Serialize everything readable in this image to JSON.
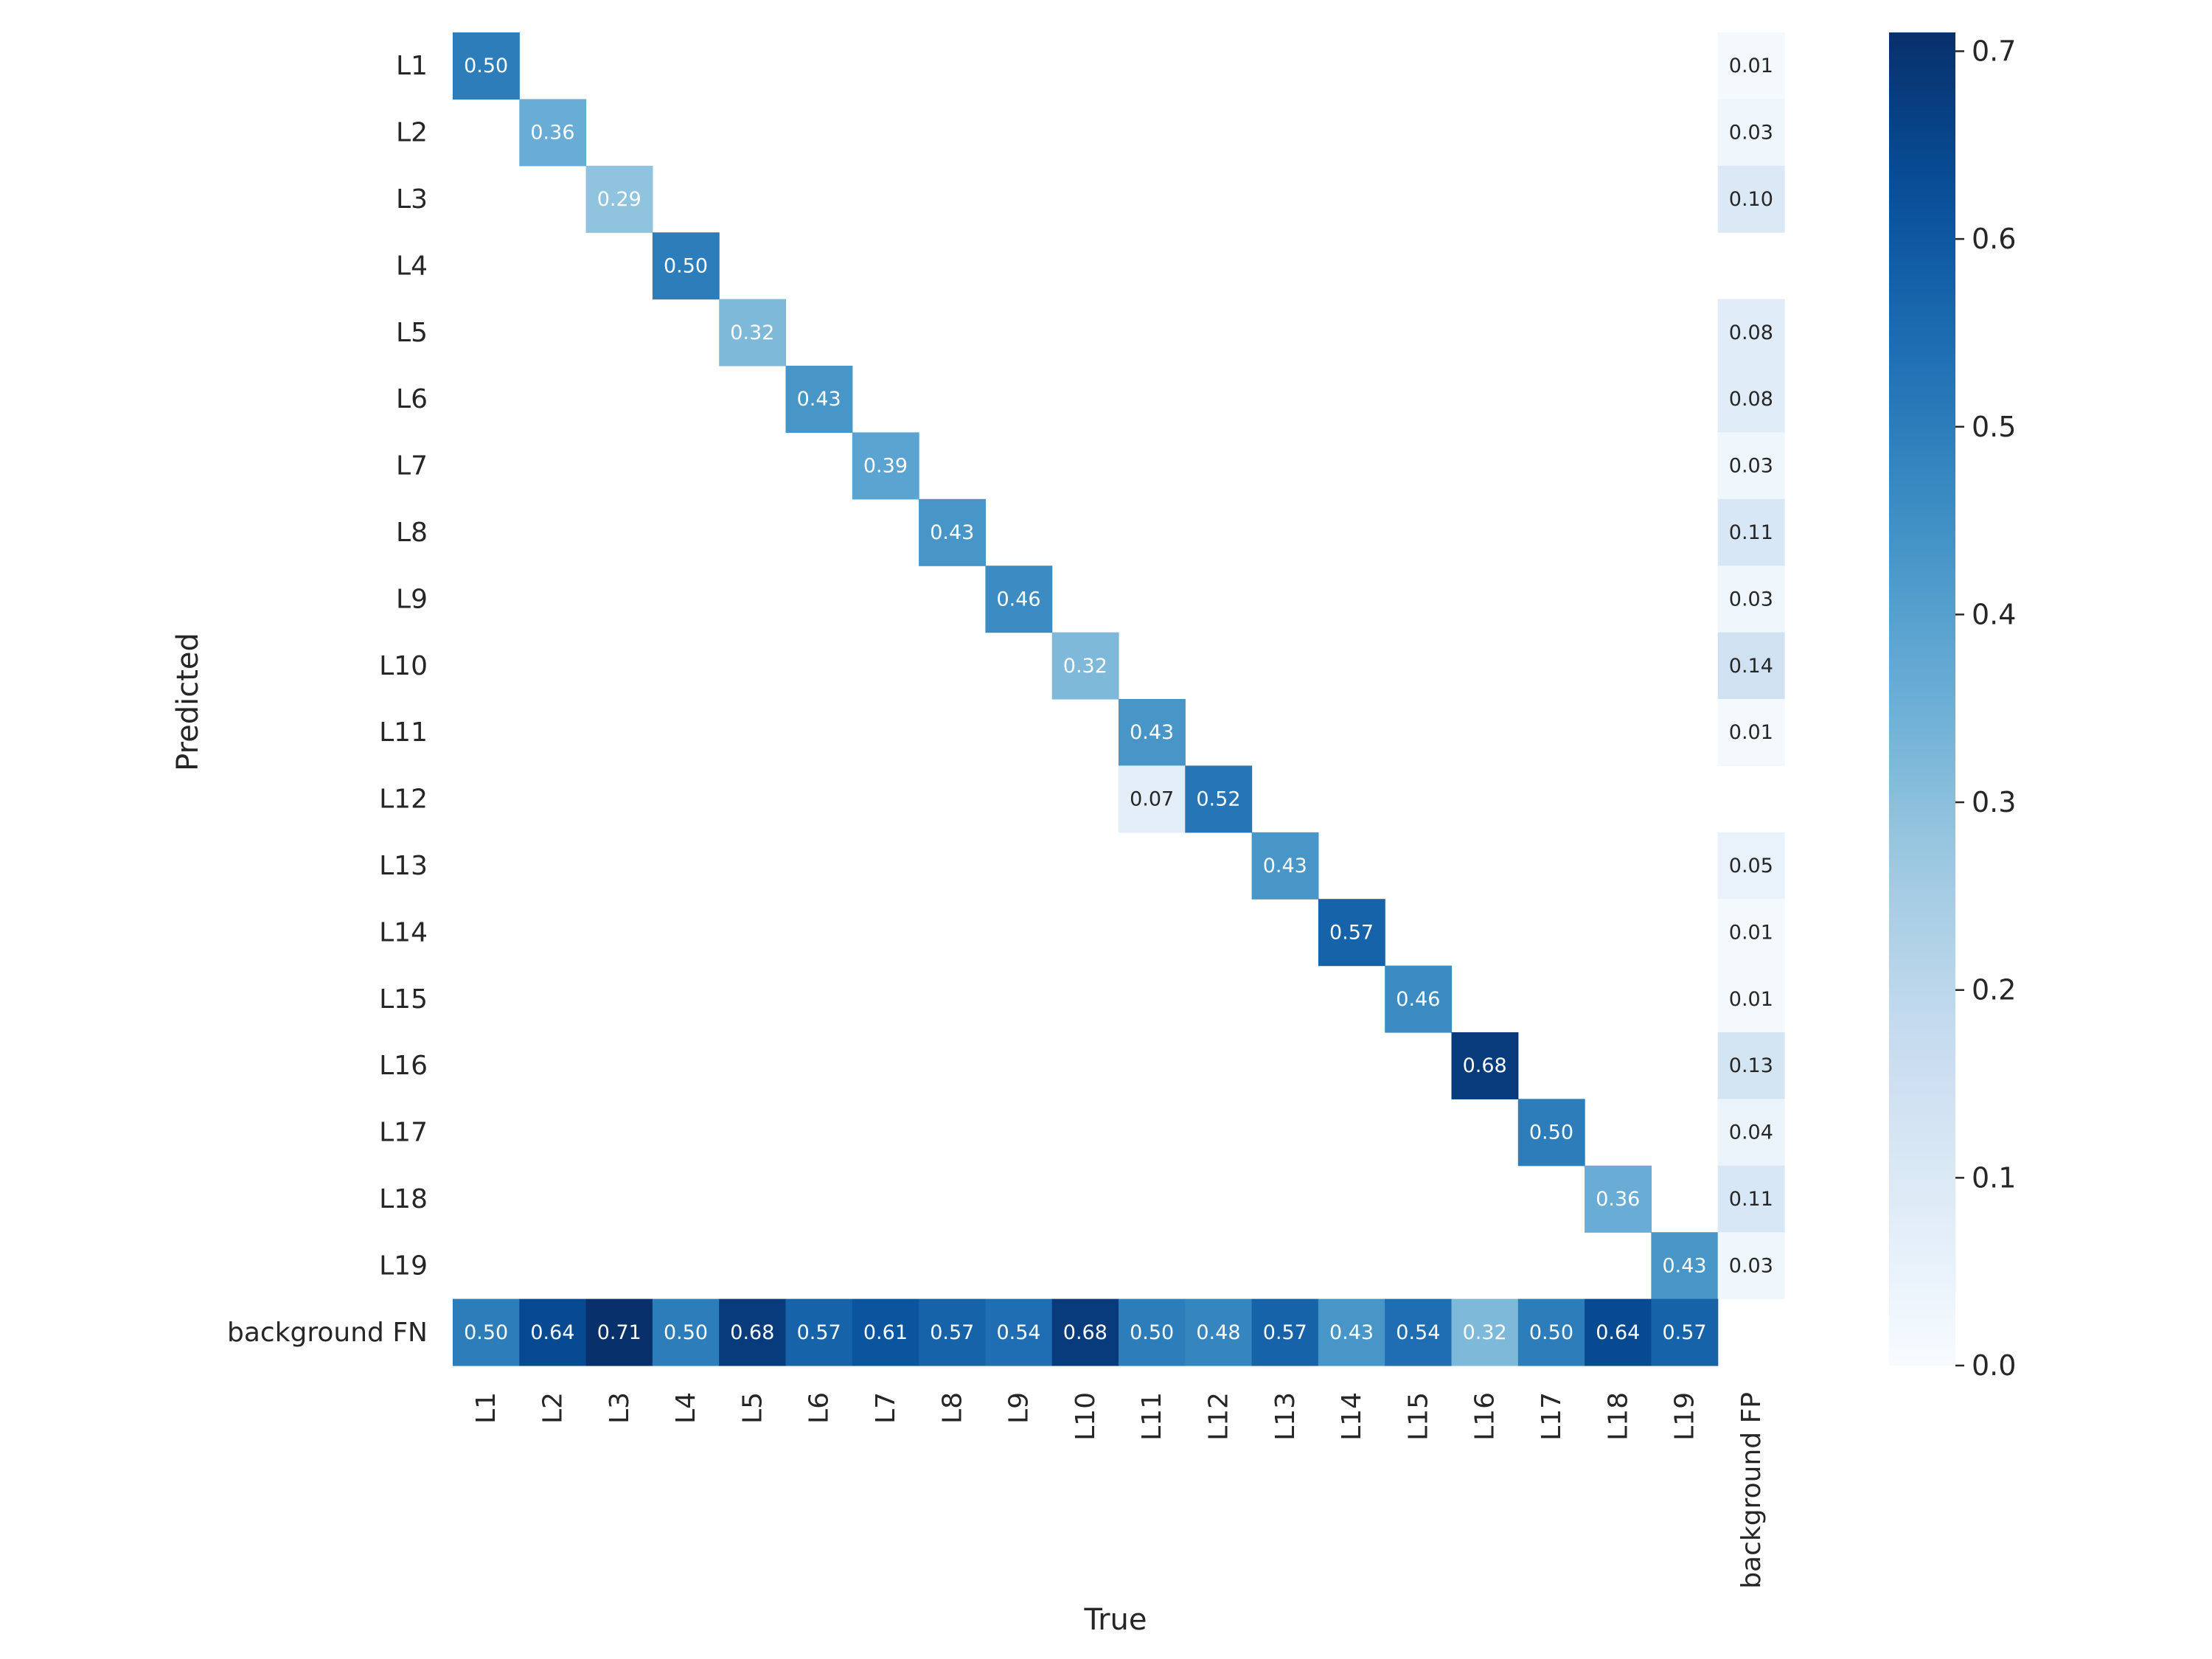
{
  "chart_data": {
    "type": "heatmap",
    "title": "",
    "xlabel": "True",
    "ylabel": "Predicted",
    "x_categories": [
      "L1",
      "L2",
      "L3",
      "L4",
      "L5",
      "L6",
      "L7",
      "L8",
      "L9",
      "L10",
      "L11",
      "L12",
      "L13",
      "L14",
      "L15",
      "L16",
      "L17",
      "L18",
      "L19",
      "background FP"
    ],
    "y_categories": [
      "L1",
      "L2",
      "L3",
      "L4",
      "L5",
      "L6",
      "L7",
      "L8",
      "L9",
      "L10",
      "L11",
      "L12",
      "L13",
      "L14",
      "L15",
      "L16",
      "L17",
      "L18",
      "L19",
      "background FN"
    ],
    "cells": [
      {
        "row": 0,
        "col": 0,
        "value": 0.5,
        "label": "0.50"
      },
      {
        "row": 0,
        "col": 19,
        "value": 0.01,
        "label": "0.01"
      },
      {
        "row": 1,
        "col": 1,
        "value": 0.36,
        "label": "0.36"
      },
      {
        "row": 1,
        "col": 19,
        "value": 0.03,
        "label": "0.03"
      },
      {
        "row": 2,
        "col": 2,
        "value": 0.29,
        "label": "0.29"
      },
      {
        "row": 2,
        "col": 19,
        "value": 0.1,
        "label": "0.10"
      },
      {
        "row": 3,
        "col": 3,
        "value": 0.5,
        "label": "0.50"
      },
      {
        "row": 4,
        "col": 4,
        "value": 0.32,
        "label": "0.32"
      },
      {
        "row": 4,
        "col": 19,
        "value": 0.08,
        "label": "0.08"
      },
      {
        "row": 5,
        "col": 5,
        "value": 0.43,
        "label": "0.43"
      },
      {
        "row": 5,
        "col": 19,
        "value": 0.08,
        "label": "0.08"
      },
      {
        "row": 6,
        "col": 6,
        "value": 0.39,
        "label": "0.39"
      },
      {
        "row": 6,
        "col": 19,
        "value": 0.03,
        "label": "0.03"
      },
      {
        "row": 7,
        "col": 7,
        "value": 0.43,
        "label": "0.43"
      },
      {
        "row": 7,
        "col": 19,
        "value": 0.11,
        "label": "0.11"
      },
      {
        "row": 8,
        "col": 8,
        "value": 0.46,
        "label": "0.46"
      },
      {
        "row": 8,
        "col": 19,
        "value": 0.03,
        "label": "0.03"
      },
      {
        "row": 9,
        "col": 9,
        "value": 0.32,
        "label": "0.32"
      },
      {
        "row": 9,
        "col": 19,
        "value": 0.14,
        "label": "0.14"
      },
      {
        "row": 10,
        "col": 10,
        "value": 0.43,
        "label": "0.43"
      },
      {
        "row": 10,
        "col": 19,
        "value": 0.01,
        "label": "0.01"
      },
      {
        "row": 11,
        "col": 10,
        "value": 0.07,
        "label": "0.07"
      },
      {
        "row": 11,
        "col": 11,
        "value": 0.52,
        "label": "0.52"
      },
      {
        "row": 12,
        "col": 12,
        "value": 0.43,
        "label": "0.43"
      },
      {
        "row": 12,
        "col": 19,
        "value": 0.05,
        "label": "0.05"
      },
      {
        "row": 13,
        "col": 13,
        "value": 0.57,
        "label": "0.57"
      },
      {
        "row": 13,
        "col": 19,
        "value": 0.01,
        "label": "0.01"
      },
      {
        "row": 14,
        "col": 14,
        "value": 0.46,
        "label": "0.46"
      },
      {
        "row": 14,
        "col": 19,
        "value": 0.01,
        "label": "0.01"
      },
      {
        "row": 15,
        "col": 15,
        "value": 0.68,
        "label": "0.68"
      },
      {
        "row": 15,
        "col": 19,
        "value": 0.13,
        "label": "0.13"
      },
      {
        "row": 16,
        "col": 16,
        "value": 0.5,
        "label": "0.50"
      },
      {
        "row": 16,
        "col": 19,
        "value": 0.04,
        "label": "0.04"
      },
      {
        "row": 17,
        "col": 17,
        "value": 0.36,
        "label": "0.36"
      },
      {
        "row": 17,
        "col": 19,
        "value": 0.11,
        "label": "0.11"
      },
      {
        "row": 18,
        "col": 18,
        "value": 0.43,
        "label": "0.43"
      },
      {
        "row": 18,
        "col": 19,
        "value": 0.03,
        "label": "0.03"
      },
      {
        "row": 19,
        "col": 0,
        "value": 0.5,
        "label": "0.50"
      },
      {
        "row": 19,
        "col": 1,
        "value": 0.64,
        "label": "0.64"
      },
      {
        "row": 19,
        "col": 2,
        "value": 0.71,
        "label": "0.71"
      },
      {
        "row": 19,
        "col": 3,
        "value": 0.5,
        "label": "0.50"
      },
      {
        "row": 19,
        "col": 4,
        "value": 0.68,
        "label": "0.68"
      },
      {
        "row": 19,
        "col": 5,
        "value": 0.57,
        "label": "0.57"
      },
      {
        "row": 19,
        "col": 6,
        "value": 0.61,
        "label": "0.61"
      },
      {
        "row": 19,
        "col": 7,
        "value": 0.57,
        "label": "0.57"
      },
      {
        "row": 19,
        "col": 8,
        "value": 0.54,
        "label": "0.54"
      },
      {
        "row": 19,
        "col": 9,
        "value": 0.68,
        "label": "0.68"
      },
      {
        "row": 19,
        "col": 10,
        "value": 0.5,
        "label": "0.50"
      },
      {
        "row": 19,
        "col": 11,
        "value": 0.48,
        "label": "0.48"
      },
      {
        "row": 19,
        "col": 12,
        "value": 0.57,
        "label": "0.57"
      },
      {
        "row": 19,
        "col": 13,
        "value": 0.43,
        "label": "0.43"
      },
      {
        "row": 19,
        "col": 14,
        "value": 0.54,
        "label": "0.54"
      },
      {
        "row": 19,
        "col": 15,
        "value": 0.32,
        "label": "0.32"
      },
      {
        "row": 19,
        "col": 16,
        "value": 0.5,
        "label": "0.50"
      },
      {
        "row": 19,
        "col": 17,
        "value": 0.64,
        "label": "0.64"
      },
      {
        "row": 19,
        "col": 18,
        "value": 0.57,
        "label": "0.57"
      }
    ],
    "colorbar": {
      "colormap": "Blues",
      "range": [
        0,
        0.71
      ],
      "ticks": [
        0.0,
        0.1,
        0.2,
        0.3,
        0.4,
        0.5,
        0.6,
        0.7
      ],
      "tick_labels": [
        "0.0",
        "0.1",
        "0.2",
        "0.3",
        "0.4",
        "0.5",
        "0.6",
        "0.7"
      ],
      "placement": "right"
    },
    "grid": false
  }
}
